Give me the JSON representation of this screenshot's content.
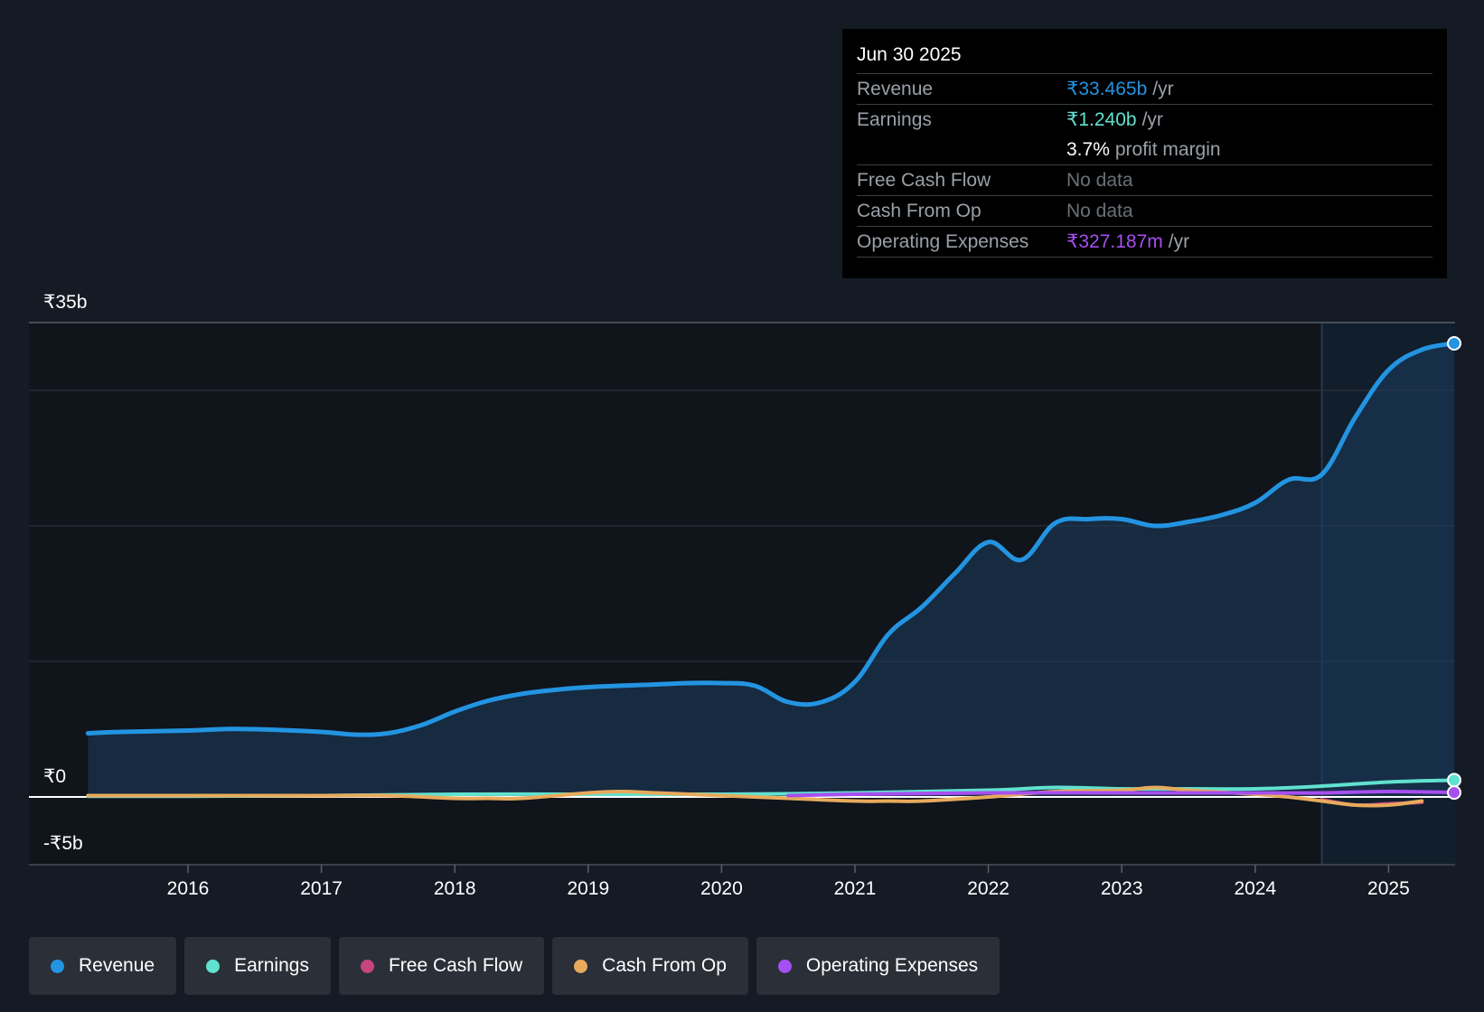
{
  "tooltip": {
    "date": "Jun 30 2025",
    "rows": [
      {
        "label": "Revenue",
        "value": "₹33.465b",
        "unit": "/yr",
        "color": "#2394e1"
      },
      {
        "label": "Earnings",
        "value": "₹1.240b",
        "unit": "/yr",
        "color": "#61e1d0"
      },
      {
        "label": "",
        "value": "3.7%",
        "unit": "profit margin",
        "color": "#ffffff"
      },
      {
        "label": "Free Cash Flow",
        "value": "No data"
      },
      {
        "label": "Cash From Op",
        "value": "No data"
      },
      {
        "label": "Operating Expenses",
        "value": "₹327.187m",
        "unit": "/yr",
        "color": "#a64ff0"
      }
    ]
  },
  "legend": [
    {
      "label": "Revenue",
      "color": "#2394e1"
    },
    {
      "label": "Earnings",
      "color": "#61e1d0"
    },
    {
      "label": "Free Cash Flow",
      "color": "#c6457e"
    },
    {
      "label": "Cash From Op",
      "color": "#e7aa5c"
    },
    {
      "label": "Operating Expenses",
      "color": "#a64ff0"
    }
  ],
  "chart_data": {
    "type": "line",
    "ylabels": {
      "top": "₹35b",
      "zero": "₹0",
      "bottom": "-₹5b"
    },
    "ylim": [
      -5,
      35
    ],
    "xlim": [
      2014.6,
      2025.5
    ],
    "xticks": [
      2016,
      2017,
      2018,
      2019,
      2020,
      2021,
      2022,
      2023,
      2024,
      2025
    ],
    "grid_values": [
      35,
      30,
      20,
      10
    ],
    "highlight_start": 2024.5,
    "series": [
      {
        "name": "Revenue",
        "color": "#2394e1",
        "fill": true,
        "points": [
          [
            2015.25,
            4.7
          ],
          [
            2015.5,
            4.8
          ],
          [
            2016.0,
            4.9
          ],
          [
            2016.25,
            5.0
          ],
          [
            2016.5,
            5.0
          ],
          [
            2017.0,
            4.8
          ],
          [
            2017.25,
            4.6
          ],
          [
            2017.5,
            4.7
          ],
          [
            2017.75,
            5.3
          ],
          [
            2018.0,
            6.3
          ],
          [
            2018.25,
            7.1
          ],
          [
            2018.5,
            7.6
          ],
          [
            2018.75,
            7.9
          ],
          [
            2019.0,
            8.1
          ],
          [
            2019.5,
            8.3
          ],
          [
            2019.75,
            8.4
          ],
          [
            2020.0,
            8.4
          ],
          [
            2020.25,
            8.2
          ],
          [
            2020.5,
            7.0
          ],
          [
            2020.75,
            7.0
          ],
          [
            2021.0,
            8.5
          ],
          [
            2021.25,
            12.0
          ],
          [
            2021.5,
            14.0
          ],
          [
            2021.75,
            16.5
          ],
          [
            2022.0,
            18.8
          ],
          [
            2022.25,
            17.5
          ],
          [
            2022.5,
            20.2
          ],
          [
            2022.75,
            20.5
          ],
          [
            2023.0,
            20.5
          ],
          [
            2023.25,
            20.0
          ],
          [
            2023.5,
            20.3
          ],
          [
            2023.75,
            20.8
          ],
          [
            2024.0,
            21.7
          ],
          [
            2024.25,
            23.4
          ],
          [
            2024.5,
            23.8
          ],
          [
            2024.75,
            28.0
          ],
          [
            2025.0,
            31.5
          ],
          [
            2025.25,
            33.0
          ],
          [
            2025.5,
            33.465
          ]
        ]
      },
      {
        "name": "Earnings",
        "color": "#61e1d0",
        "fill": false,
        "points": [
          [
            2015.25,
            0.05
          ],
          [
            2016.0,
            0.05
          ],
          [
            2017.0,
            0.1
          ],
          [
            2018.0,
            0.2
          ],
          [
            2019.0,
            0.2
          ],
          [
            2020.0,
            0.2
          ],
          [
            2021.0,
            0.3
          ],
          [
            2022.0,
            0.5
          ],
          [
            2022.5,
            0.7
          ],
          [
            2023.0,
            0.6
          ],
          [
            2023.5,
            0.6
          ],
          [
            2024.0,
            0.6
          ],
          [
            2024.5,
            0.8
          ],
          [
            2025.0,
            1.1
          ],
          [
            2025.5,
            1.24
          ]
        ]
      },
      {
        "name": "Free Cash Flow",
        "color": "#c6457e",
        "fill": false,
        "points": [
          [
            2024.5,
            -0.2
          ],
          [
            2024.75,
            -0.6
          ],
          [
            2025.0,
            -0.5
          ],
          [
            2025.25,
            -0.4
          ]
        ]
      },
      {
        "name": "Cash From Op",
        "color": "#e7aa5c",
        "fill": false,
        "points": [
          [
            2015.25,
            0.1
          ],
          [
            2016.0,
            0.1
          ],
          [
            2017.0,
            0.1
          ],
          [
            2017.5,
            0.1
          ],
          [
            2018.0,
            -0.1
          ],
          [
            2018.25,
            -0.1
          ],
          [
            2018.5,
            -0.1
          ],
          [
            2019.0,
            0.3
          ],
          [
            2019.25,
            0.4
          ],
          [
            2019.5,
            0.3
          ],
          [
            2020.0,
            0.1
          ],
          [
            2020.5,
            -0.1
          ],
          [
            2021.0,
            -0.3
          ],
          [
            2021.25,
            -0.3
          ],
          [
            2021.5,
            -0.3
          ],
          [
            2022.0,
            0.0
          ],
          [
            2022.5,
            0.4
          ],
          [
            2023.0,
            0.5
          ],
          [
            2023.25,
            0.7
          ],
          [
            2023.5,
            0.5
          ],
          [
            2024.0,
            0.2
          ],
          [
            2024.25,
            0.0
          ],
          [
            2024.5,
            -0.3
          ],
          [
            2024.75,
            -0.6
          ],
          [
            2025.0,
            -0.6
          ],
          [
            2025.25,
            -0.3
          ]
        ]
      },
      {
        "name": "Operating Expenses",
        "color": "#a64ff0",
        "fill": false,
        "points": [
          [
            2020.5,
            0.1
          ],
          [
            2021.0,
            0.2
          ],
          [
            2022.0,
            0.3
          ],
          [
            2023.0,
            0.3
          ],
          [
            2024.0,
            0.3
          ],
          [
            2024.5,
            0.3
          ],
          [
            2025.0,
            0.4
          ],
          [
            2025.5,
            0.327
          ]
        ]
      }
    ]
  }
}
